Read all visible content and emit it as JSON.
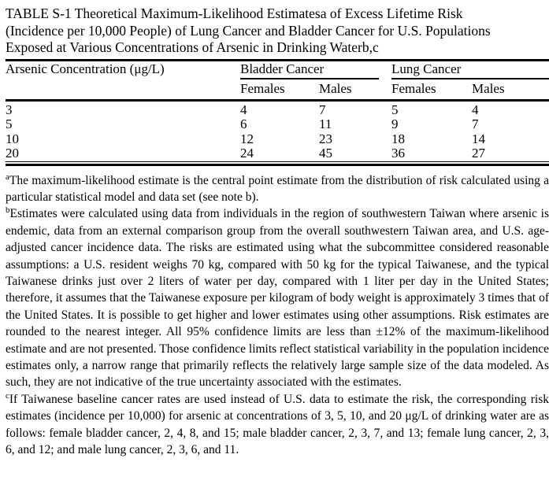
{
  "title": "TABLE S-1 Theoretical Maximum-Likelihood Estimatesa of Excess Lifetime Risk (Incidence per 10,000 People) of Lung Cancer and Bladder Cancer for U.S. Populations Exposed at Various Concentrations of Arsenic in Drinking Waterb,c",
  "table": {
    "col1_header": "Arsenic Concentration (μg/L)",
    "group_headers": [
      "Bladder Cancer",
      "Lung Cancer"
    ],
    "sub_headers": [
      "Females",
      "Males",
      "Females",
      "Males"
    ],
    "rows": [
      {
        "concentration": "3",
        "values": [
          "4",
          "7",
          "5",
          "4"
        ]
      },
      {
        "concentration": "5",
        "values": [
          "6",
          "11",
          "9",
          "7"
        ]
      },
      {
        "concentration": "10",
        "values": [
          "12",
          "23",
          "18",
          "14"
        ]
      },
      {
        "concentration": "20",
        "values": [
          "24",
          "45",
          "36",
          "27"
        ]
      }
    ]
  },
  "footnotes": [
    {
      "marker": "a",
      "text": "The maximum-likelihood estimate is the central point estimate from the distribution of risk calculated using a particular statistical model and data set (see note b)."
    },
    {
      "marker": "b",
      "text": "Estimates were calculated using data from individuals in the region of southwestern Taiwan where arsenic is endemic, data from an external comparison group from the overall southwestern Taiwan area, and U.S. age-adjusted cancer incidence data. The risks are estimated using what the subcommittee considered reasonable assumptions: a U.S. resident weighs 70 kg, compared with 50 kg for the typical Taiwanese, and the typical Taiwanese drinks just over 2 liters of water per day, compared with 1 liter per day in the United States; therefore, it assumes that the Taiwanese exposure per kilogram of body weight is approximately 3 times that of the United States. It is possible to get higher and lower estimates using other assumptions. Risk estimates are rounded to the nearest integer. All 95% confidence limits are less than ±12% of the maximum-likelihood estimate and are not presented. Those confidence limits reflect statistical variability in the population incidence estimates only, a narrow range that primarily reflects the relatively large sample size of the data modeled. As such, they are not indicative of the true uncertainty associated with the estimates."
    },
    {
      "marker": "c",
      "text": "If Taiwanese baseline cancer rates are used instead of U.S. data to estimate the risk, the corresponding risk estimates (incidence per 10,000) for arsenic at concentrations of 3, 5, 10, and 20 μg/L of drinking water are as follows: female bladder cancer, 2, 4, 8, and 15; male bladder cancer, 2, 3, 7, and 13; female lung cancer, 2, 3, 6, and 12; and male lung cancer, 2, 3, 6, and 11."
    }
  ]
}
